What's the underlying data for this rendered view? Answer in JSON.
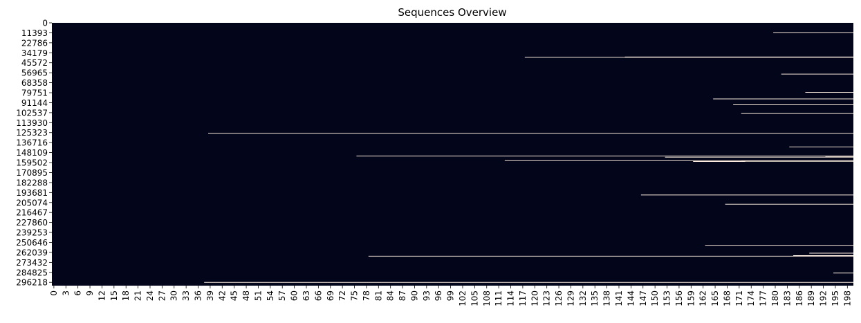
{
  "chart_data": {
    "type": "heatmap",
    "title": "Sequences Overview",
    "xlabel": "",
    "ylabel": "",
    "n_columns": 200,
    "n_rows": 300000,
    "x_tick_labels": [
      "0",
      "3",
      "6",
      "9",
      "12",
      "15",
      "18",
      "21",
      "24",
      "27",
      "30",
      "33",
      "36",
      "39",
      "42",
      "45",
      "48",
      "51",
      "54",
      "57",
      "60",
      "63",
      "66",
      "69",
      "72",
      "75",
      "78",
      "81",
      "84",
      "87",
      "90",
      "93",
      "96",
      "99",
      "102",
      "105",
      "108",
      "111",
      "114",
      "117",
      "120",
      "123",
      "126",
      "129",
      "132",
      "135",
      "138",
      "141",
      "144",
      "147",
      "150",
      "153",
      "156",
      "159",
      "162",
      "165",
      "168",
      "171",
      "174",
      "177",
      "180",
      "183",
      "186",
      "189",
      "192",
      "195",
      "198"
    ],
    "y_tick_labels": [
      "0",
      "11393",
      "22786",
      "34179",
      "45572",
      "56965",
      "68358",
      "79751",
      "91144",
      "102537",
      "113930",
      "125323",
      "136716",
      "148109",
      "159502",
      "170895",
      "182288",
      "193681",
      "205074",
      "216467",
      "227860",
      "239253",
      "250646",
      "262039",
      "273432",
      "284825",
      "296218"
    ],
    "background_value": 0,
    "highlight_value": 1,
    "colors": {
      "low": "#03051a",
      "high": "#faebdd"
    },
    "grid": false,
    "legend": "none",
    "highlighted_runs": [
      {
        "row": 11393,
        "col_start": 180,
        "col_end": 199
      },
      {
        "row": 39400,
        "col_start": 118,
        "col_end": 199
      },
      {
        "row": 39000,
        "col_start": 143,
        "col_end": 199
      },
      {
        "row": 58500,
        "col_start": 182,
        "col_end": 199
      },
      {
        "row": 79300,
        "col_start": 188,
        "col_end": 199
      },
      {
        "row": 86800,
        "col_start": 165,
        "col_end": 199
      },
      {
        "row": 93600,
        "col_start": 170,
        "col_end": 199
      },
      {
        "row": 103500,
        "col_start": 172,
        "col_end": 199
      },
      {
        "row": 126000,
        "col_start": 39,
        "col_end": 199
      },
      {
        "row": 141700,
        "col_start": 184,
        "col_end": 199
      },
      {
        "row": 152100,
        "col_start": 76,
        "col_end": 199
      },
      {
        "row": 153400,
        "col_start": 153,
        "col_end": 199
      },
      {
        "row": 153000,
        "col_start": 193,
        "col_end": 199
      },
      {
        "row": 157300,
        "col_start": 113,
        "col_end": 199
      },
      {
        "row": 158300,
        "col_start": 160,
        "col_end": 172
      },
      {
        "row": 158100,
        "col_start": 172,
        "col_end": 199
      },
      {
        "row": 196500,
        "col_start": 147,
        "col_end": 199
      },
      {
        "row": 207000,
        "col_start": 168,
        "col_end": 199
      },
      {
        "row": 253900,
        "col_start": 163,
        "col_end": 199
      },
      {
        "row": 262900,
        "col_start": 189,
        "col_end": 199
      },
      {
        "row": 266300,
        "col_start": 79,
        "col_end": 199
      },
      {
        "row": 265700,
        "col_start": 185,
        "col_end": 199
      },
      {
        "row": 285600,
        "col_start": 195,
        "col_end": 199
      },
      {
        "row": 296218,
        "col_start": 38,
        "col_end": 199
      }
    ]
  }
}
